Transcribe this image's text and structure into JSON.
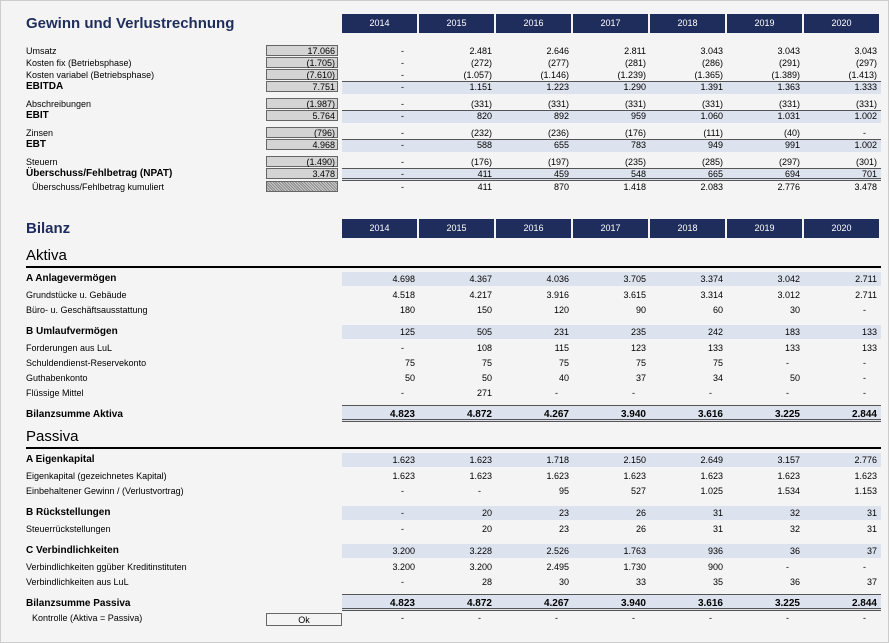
{
  "guv": {
    "title": "Gewinn und Verlustrechnung",
    "years": [
      "2014",
      "2015",
      "2016",
      "2017",
      "2018",
      "2019",
      "2020"
    ],
    "rows": [
      {
        "label": "Umsatz",
        "total": "17.066",
        "values": [
          "-",
          "2.481",
          "2.646",
          "2.811",
          "3.043",
          "3.043",
          "3.043"
        ]
      },
      {
        "label": "Kosten fix (Betriebsphase)",
        "total": "(1.705)",
        "values": [
          "-",
          "(272)",
          "(277)",
          "(281)",
          "(286)",
          "(291)",
          "(297)"
        ]
      },
      {
        "label": "Kosten variabel (Betriebsphase)",
        "total": "(7.610)",
        "values": [
          "-",
          "(1.057)",
          "(1.146)",
          "(1.239)",
          "(1.365)",
          "(1.389)",
          "(1.413)"
        ]
      },
      {
        "label": "EBITDA",
        "total": "7.751",
        "bold": true,
        "values": [
          "-",
          "1.151",
          "1.223",
          "1.290",
          "1.391",
          "1.363",
          "1.333"
        ]
      },
      {
        "label": "Abschreibungen",
        "total": "(1.987)",
        "values": [
          "-",
          "(331)",
          "(331)",
          "(331)",
          "(331)",
          "(331)",
          "(331)"
        ]
      },
      {
        "label": "EBIT",
        "total": "5.764",
        "bold": true,
        "values": [
          "-",
          "820",
          "892",
          "959",
          "1.060",
          "1.031",
          "1.002"
        ]
      },
      {
        "label": "Zinsen",
        "total": "(796)",
        "values": [
          "-",
          "(232)",
          "(236)",
          "(176)",
          "(111)",
          "(40)",
          "-"
        ]
      },
      {
        "label": "EBT",
        "total": "4.968",
        "bold": true,
        "values": [
          "-",
          "588",
          "655",
          "783",
          "949",
          "991",
          "1.002"
        ]
      },
      {
        "label": "Steuern",
        "total": "(1.490)",
        "values": [
          "-",
          "(176)",
          "(197)",
          "(235)",
          "(285)",
          "(297)",
          "(301)"
        ]
      },
      {
        "label": "Überschuss/Fehlbetrag  (NPAT)",
        "total": "3.478",
        "bold": true,
        "values": [
          "-",
          "411",
          "459",
          "548",
          "665",
          "694",
          "701"
        ]
      },
      {
        "label": "Überschuss/Fehlbetrag kumuliert",
        "total": "",
        "hatched": true,
        "values": [
          "-",
          "411",
          "870",
          "1.418",
          "2.083",
          "2.776",
          "3.478"
        ]
      }
    ]
  },
  "bilanz": {
    "title": "Bilanz",
    "years": [
      "2014",
      "2015",
      "2016",
      "2017",
      "2018",
      "2019",
      "2020"
    ],
    "aktiva_title": "Aktiva",
    "passiva_title": "Passiva",
    "aktiva": [
      {
        "label": "A Anlagevermögen",
        "group": true,
        "values": [
          "4.698",
          "4.367",
          "4.036",
          "3.705",
          "3.374",
          "3.042",
          "2.711"
        ]
      },
      {
        "label": "Grundstücke u. Gebäude",
        "values": [
          "4.518",
          "4.217",
          "3.916",
          "3.615",
          "3.314",
          "3.012",
          "2.711"
        ]
      },
      {
        "label": "Büro- u. Geschäftsausstattung",
        "values": [
          "180",
          "150",
          "120",
          "90",
          "60",
          "30",
          "-"
        ]
      },
      {
        "label": "B Umlaufvermögen",
        "group": true,
        "values": [
          "125",
          "505",
          "231",
          "235",
          "242",
          "183",
          "133"
        ]
      },
      {
        "label": "Forderungen aus LuL",
        "values": [
          "-",
          "108",
          "115",
          "123",
          "133",
          "133",
          "133"
        ]
      },
      {
        "label": "Schuldendienst-Reservekonto",
        "values": [
          "75",
          "75",
          "75",
          "75",
          "75",
          "-",
          "-"
        ]
      },
      {
        "label": "Guthabenkonto",
        "values": [
          "50",
          "50",
          "40",
          "37",
          "34",
          "50",
          "-"
        ]
      },
      {
        "label": "Flüssige Mittel",
        "values": [
          "-",
          "271",
          "-",
          "-",
          "-",
          "-",
          "-"
        ]
      },
      {
        "label": "Bilanzsumme Aktiva",
        "sum": true,
        "values": [
          "4.823",
          "4.872",
          "4.267",
          "3.940",
          "3.616",
          "3.225",
          "2.844"
        ]
      }
    ],
    "passiva": [
      {
        "label": "A Eigenkapital",
        "group": true,
        "values": [
          "1.623",
          "1.623",
          "1.718",
          "2.150",
          "2.649",
          "3.157",
          "2.776"
        ]
      },
      {
        "label": "Eigenkapital (gezeichnetes Kapital)",
        "values": [
          "1.623",
          "1.623",
          "1.623",
          "1.623",
          "1.623",
          "1.623",
          "1.623"
        ]
      },
      {
        "label": "Einbehaltener Gewinn / (Verlustvortrag)",
        "values": [
          "-",
          "-",
          "95",
          "527",
          "1.025",
          "1.534",
          "1.153"
        ]
      },
      {
        "label": "B Rückstellungen",
        "group": true,
        "values": [
          "-",
          "20",
          "23",
          "26",
          "31",
          "32",
          "31"
        ]
      },
      {
        "label": "Steuerrückstellungen",
        "values": [
          "-",
          "20",
          "23",
          "26",
          "31",
          "32",
          "31"
        ]
      },
      {
        "label": "C Verbindlichkeiten",
        "group": true,
        "values": [
          "3.200",
          "3.228",
          "2.526",
          "1.763",
          "936",
          "36",
          "37"
        ]
      },
      {
        "label": "Verbindlichkeiten ggüber Kreditinstituten",
        "values": [
          "3.200",
          "3.200",
          "2.495",
          "1.730",
          "900",
          "-",
          "-"
        ]
      },
      {
        "label": "Verbindlichkeiten aus LuL",
        "values": [
          "-",
          "28",
          "30",
          "33",
          "35",
          "36",
          "37"
        ]
      },
      {
        "label": "Bilanzsumme Passiva",
        "sum": true,
        "values": [
          "4.823",
          "4.872",
          "4.267",
          "3.940",
          "3.616",
          "3.225",
          "2.844"
        ]
      },
      {
        "label": "Kontrolle  (Aktiva = Passiva)",
        "check": "Ok",
        "values": [
          "-",
          "-",
          "-",
          "-",
          "-",
          "-",
          "-"
        ]
      }
    ]
  },
  "colors": {
    "header": "#1f2d5c",
    "band": "#dde3ee"
  }
}
